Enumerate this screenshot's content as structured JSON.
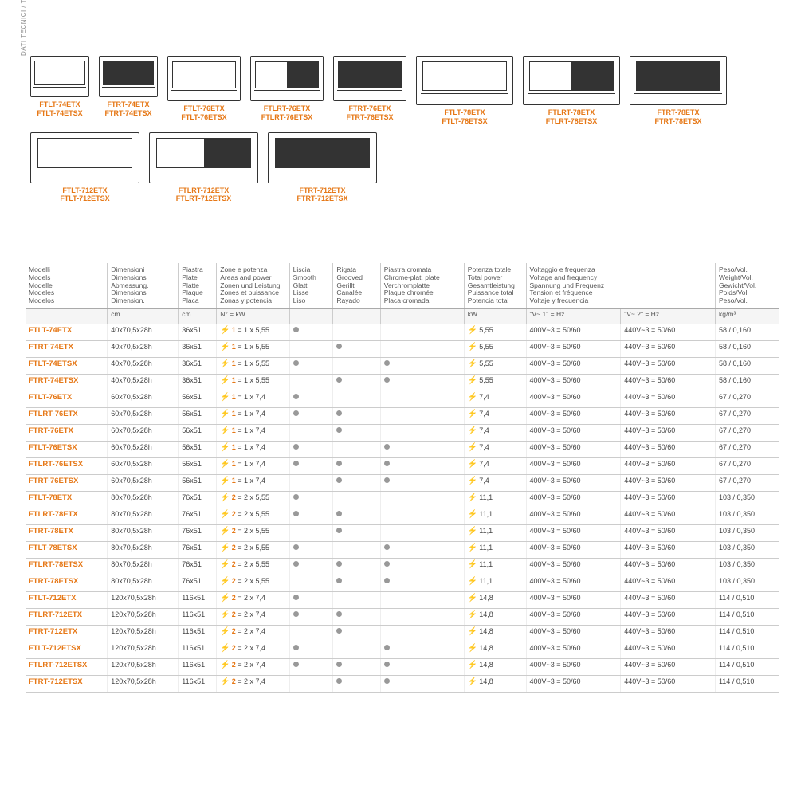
{
  "sidebar": "DATI TECNICI / TECHNICAL DA\nDONNEES TECHNIQUES / DAT",
  "accent": "#e67817",
  "products_row1": [
    {
      "labels": "FTLT-74ETX\nFTLT-74ETSX",
      "size": "small",
      "fill": "plain"
    },
    {
      "labels": "FTRT-74ETX\nFTRT-74ETSX",
      "size": "small",
      "fill": "dark"
    },
    {
      "labels": "FTLT-76ETX\nFTLT-76ETSX",
      "size": "med",
      "fill": "plain"
    },
    {
      "labels": "FTLRT-76ETX\nFTLRT-76ETSX",
      "size": "med",
      "fill": "half"
    },
    {
      "labels": "FTRT-76ETX\nFTRT-76ETSX",
      "size": "med",
      "fill": "dark"
    },
    {
      "labels": "FTLT-78ETX\nFTLT-78ETSX",
      "size": "large",
      "fill": "plain"
    },
    {
      "labels": "FTLRT-78ETX\nFTLRT-78ETSX",
      "size": "large",
      "fill": "half"
    },
    {
      "labels": "FTRT-78ETX\nFTRT-78ETSX",
      "size": "large",
      "fill": "dark"
    }
  ],
  "products_row2": [
    {
      "labels": "FTLT-712ETX\nFTLT-712ETSX",
      "size": "xlarge",
      "fill": "plain"
    },
    {
      "labels": "FTLRT-712ETX\nFTLRT-712ETSX",
      "size": "xlarge",
      "fill": "half"
    },
    {
      "labels": "FTRT-712ETX\nFTRT-712ETSX",
      "size": "xlarge",
      "fill": "dark"
    }
  ],
  "headers": {
    "model": "Modelli\nModels\nModelle\nModeles\nModelos",
    "dim": "Dimensioni\nDimensions\nAbmessung.\nDimensions\nDimension.",
    "plate": "Piastra\nPlate\nPlatte\nPlaque\nPlaca",
    "zone": "Zone e potenza\nAreas and power\nZonen und Leistung\nZones et puissance\nZonas y potencia",
    "smooth": "Liscia\nSmooth\nGlatt\nLisse\nLiso",
    "groove": "Rigata\nGrooved\nGerillt\nCanalée\nRayado",
    "chrome": "Piastra cromata\nChrome-plat. plate\nVerchromplatte\nPlaque chromée\nPlaca cromada",
    "power": "Potenza totale\nTotal power\nGesamtleistung\nPuissance total\nPotencia total",
    "volt": "Voltaggio e frequenza\nVoltage and frequency\nSpannung und Frequenz\nTension et fréquence\nVoltaje y frecuencia",
    "weight": "Peso/Vol.\nWeight/Vol.\nGewicht/Vol.\nPoids/Vol.\nPeso/Vol."
  },
  "units": {
    "dim": "cm",
    "plate": "cm",
    "zone": "N° = kW",
    "power": "kW",
    "v1": "\"V~ 1\" = Hz",
    "v2": "\"V~ 2\" = Hz",
    "weight": "kg/m³"
  },
  "rows": [
    {
      "m": "FTLT-74ETX",
      "d": "40x70,5x28h",
      "p": "36x51",
      "zn": "1",
      "zk": "1 x 5,55",
      "s": 1,
      "g": 0,
      "c": 0,
      "kw": "5,55",
      "v1": "400V~3 = 50/60",
      "v2": "440V~3 = 50/60",
      "w": "58 / 0,160"
    },
    {
      "m": "FTRT-74ETX",
      "d": "40x70,5x28h",
      "p": "36x51",
      "zn": "1",
      "zk": "1 x 5,55",
      "s": 0,
      "g": 1,
      "c": 0,
      "kw": "5,55",
      "v1": "400V~3 = 50/60",
      "v2": "440V~3 = 50/60",
      "w": "58 / 0,160"
    },
    {
      "m": "FTLT-74ETSX",
      "d": "40x70,5x28h",
      "p": "36x51",
      "zn": "1",
      "zk": "1 x 5,55",
      "s": 1,
      "g": 0,
      "c": 1,
      "kw": "5,55",
      "v1": "400V~3 = 50/60",
      "v2": "440V~3 = 50/60",
      "w": "58 / 0,160"
    },
    {
      "m": "FTRT-74ETSX",
      "d": "40x70,5x28h",
      "p": "36x51",
      "zn": "1",
      "zk": "1 x 5,55",
      "s": 0,
      "g": 1,
      "c": 1,
      "kw": "5,55",
      "v1": "400V~3 = 50/60",
      "v2": "440V~3 = 50/60",
      "w": "58 / 0,160"
    },
    {
      "m": "FTLT-76ETX",
      "d": "60x70,5x28h",
      "p": "56x51",
      "zn": "1",
      "zk": "1 x 7,4",
      "s": 1,
      "g": 0,
      "c": 0,
      "kw": "7,4",
      "v1": "400V~3 = 50/60",
      "v2": "440V~3 = 50/60",
      "w": "67 / 0,270"
    },
    {
      "m": "FTLRT-76ETX",
      "d": "60x70,5x28h",
      "p": "56x51",
      "zn": "1",
      "zk": "1 x 7,4",
      "s": 1,
      "g": 1,
      "c": 0,
      "kw": "7,4",
      "v1": "400V~3 = 50/60",
      "v2": "440V~3 = 50/60",
      "w": "67 / 0,270"
    },
    {
      "m": "FTRT-76ETX",
      "d": "60x70,5x28h",
      "p": "56x51",
      "zn": "1",
      "zk": "1 x 7,4",
      "s": 0,
      "g": 1,
      "c": 0,
      "kw": "7,4",
      "v1": "400V~3 = 50/60",
      "v2": "440V~3 = 50/60",
      "w": "67 / 0,270"
    },
    {
      "m": "FTLT-76ETSX",
      "d": "60x70,5x28h",
      "p": "56x51",
      "zn": "1",
      "zk": "1 x 7,4",
      "s": 1,
      "g": 0,
      "c": 1,
      "kw": "7,4",
      "v1": "400V~3 = 50/60",
      "v2": "440V~3 = 50/60",
      "w": "67 / 0,270"
    },
    {
      "m": "FTLRT-76ETSX",
      "d": "60x70,5x28h",
      "p": "56x51",
      "zn": "1",
      "zk": "1 x 7,4",
      "s": 1,
      "g": 1,
      "c": 1,
      "kw": "7,4",
      "v1": "400V~3 = 50/60",
      "v2": "440V~3 = 50/60",
      "w": "67 / 0,270"
    },
    {
      "m": "FTRT-76ETSX",
      "d": "60x70,5x28h",
      "p": "56x51",
      "zn": "1",
      "zk": "1 x 7,4",
      "s": 0,
      "g": 1,
      "c": 1,
      "kw": "7,4",
      "v1": "400V~3 = 50/60",
      "v2": "440V~3 = 50/60",
      "w": "67 / 0,270"
    },
    {
      "m": "FTLT-78ETX",
      "d": "80x70,5x28h",
      "p": "76x51",
      "zn": "2",
      "zk": "2 x 5,55",
      "s": 1,
      "g": 0,
      "c": 0,
      "kw": "11,1",
      "v1": "400V~3 = 50/60",
      "v2": "440V~3 = 50/60",
      "w": "103 / 0,350"
    },
    {
      "m": "FTLRT-78ETX",
      "d": "80x70,5x28h",
      "p": "76x51",
      "zn": "2",
      "zk": "2 x 5,55",
      "s": 1,
      "g": 1,
      "c": 0,
      "kw": "11,1",
      "v1": "400V~3 = 50/60",
      "v2": "440V~3 = 50/60",
      "w": "103 / 0,350"
    },
    {
      "m": "FTRT-78ETX",
      "d": "80x70,5x28h",
      "p": "76x51",
      "zn": "2",
      "zk": "2 x 5,55",
      "s": 0,
      "g": 1,
      "c": 0,
      "kw": "11,1",
      "v1": "400V~3 = 50/60",
      "v2": "440V~3 = 50/60",
      "w": "103 / 0,350"
    },
    {
      "m": "FTLT-78ETSX",
      "d": "80x70,5x28h",
      "p": "76x51",
      "zn": "2",
      "zk": "2 x 5,55",
      "s": 1,
      "g": 0,
      "c": 1,
      "kw": "11,1",
      "v1": "400V~3 = 50/60",
      "v2": "440V~3 = 50/60",
      "w": "103 / 0,350"
    },
    {
      "m": "FTLRT-78ETSX",
      "d": "80x70,5x28h",
      "p": "76x51",
      "zn": "2",
      "zk": "2 x 5,55",
      "s": 1,
      "g": 1,
      "c": 1,
      "kw": "11,1",
      "v1": "400V~3 = 50/60",
      "v2": "440V~3 = 50/60",
      "w": "103 / 0,350"
    },
    {
      "m": "FTRT-78ETSX",
      "d": "80x70,5x28h",
      "p": "76x51",
      "zn": "2",
      "zk": "2 x 5,55",
      "s": 0,
      "g": 1,
      "c": 1,
      "kw": "11,1",
      "v1": "400V~3 = 50/60",
      "v2": "440V~3 = 50/60",
      "w": "103 / 0,350"
    },
    {
      "m": "FTLT-712ETX",
      "d": "120x70,5x28h",
      "p": "116x51",
      "zn": "2",
      "zk": "2 x 7,4",
      "s": 1,
      "g": 0,
      "c": 0,
      "kw": "14,8",
      "v1": "400V~3 = 50/60",
      "v2": "440V~3 = 50/60",
      "w": "114 / 0,510"
    },
    {
      "m": "FTLRT-712ETX",
      "d": "120x70,5x28h",
      "p": "116x51",
      "zn": "2",
      "zk": "2 x 7,4",
      "s": 1,
      "g": 1,
      "c": 0,
      "kw": "14,8",
      "v1": "400V~3 = 50/60",
      "v2": "440V~3 = 50/60",
      "w": "114 / 0,510"
    },
    {
      "m": "FTRT-712ETX",
      "d": "120x70,5x28h",
      "p": "116x51",
      "zn": "2",
      "zk": "2 x 7,4",
      "s": 0,
      "g": 1,
      "c": 0,
      "kw": "14,8",
      "v1": "400V~3 = 50/60",
      "v2": "440V~3 = 50/60",
      "w": "114 / 0,510"
    },
    {
      "m": "FTLT-712ETSX",
      "d": "120x70,5x28h",
      "p": "116x51",
      "zn": "2",
      "zk": "2 x 7,4",
      "s": 1,
      "g": 0,
      "c": 1,
      "kw": "14,8",
      "v1": "400V~3 = 50/60",
      "v2": "440V~3 = 50/60",
      "w": "114 / 0,510"
    },
    {
      "m": "FTLRT-712ETSX",
      "d": "120x70,5x28h",
      "p": "116x51",
      "zn": "2",
      "zk": "2 x 7,4",
      "s": 1,
      "g": 1,
      "c": 1,
      "kw": "14,8",
      "v1": "400V~3 = 50/60",
      "v2": "440V~3 = 50/60",
      "w": "114 / 0,510"
    },
    {
      "m": "FTRT-712ETSX",
      "d": "120x70,5x28h",
      "p": "116x51",
      "zn": "2",
      "zk": "2 x 7,4",
      "s": 0,
      "g": 1,
      "c": 1,
      "kw": "14,8",
      "v1": "400V~3 = 50/60",
      "v2": "440V~3 = 50/60",
      "w": "114 / 0,510"
    }
  ]
}
